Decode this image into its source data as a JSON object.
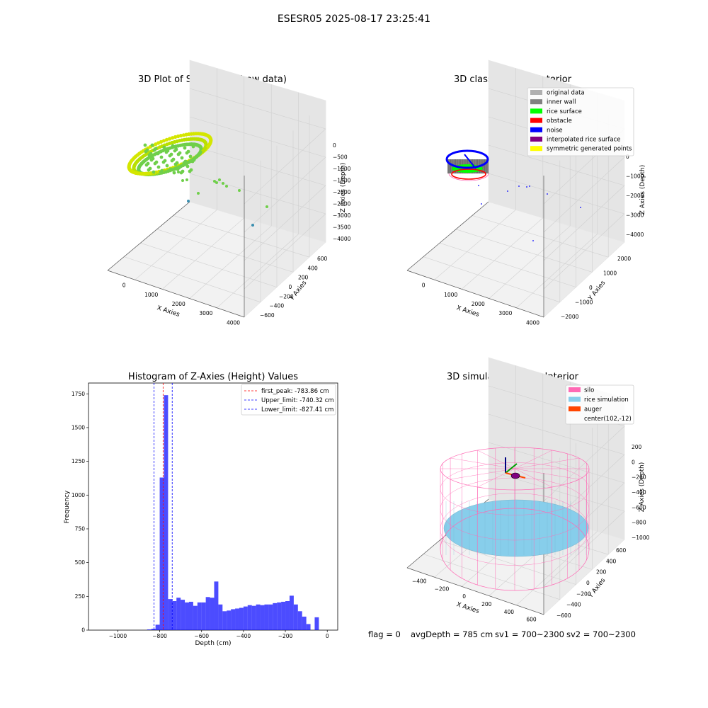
{
  "figure": {
    "title": "ESESR05 2025-08-17 23:25:41",
    "footer": {
      "flag": "flag = 0",
      "avg_depth": "avgDepth = 785 cm",
      "sv1": "sv1 = 700~2300",
      "sv2": "sv2 = 700~2300"
    }
  },
  "panels": {
    "raw": {
      "title": "3D Plot of Silo Interior(row data)",
      "xlabel": "X Axies",
      "ylabel": "Y Axies",
      "zlabel": "Z Axies (Depth)",
      "x_ticks": [
        "0",
        "1000",
        "2000",
        "3000",
        "4000"
      ],
      "y_ticks": [
        "600",
        "400",
        "200",
        "0",
        "−200",
        "−400",
        "−600"
      ],
      "z_ticks": [
        "0",
        "−500",
        "−1000",
        "−1500",
        "−2000",
        "−2500",
        "−3000",
        "−3500",
        "−4000"
      ],
      "colors": {
        "near": "#d4e600",
        "mid": "#6fcf4a",
        "far": "#3a8fb0"
      }
    },
    "classify": {
      "title": "3D classify of Silo Interior",
      "xlabel": "X Axies",
      "ylabel": "Y Axies",
      "zlabel": "Z Axies (Depth)",
      "x_ticks": [
        "0",
        "1000",
        "2000",
        "3000",
        "4000"
      ],
      "y_ticks": [
        "2000",
        "1000",
        "0",
        "−1000",
        "−2000"
      ],
      "z_ticks": [
        "0",
        "−1000",
        "−2000",
        "−3000",
        "−4000"
      ],
      "legend": [
        {
          "label": "original data",
          "color": "#b0b0b0"
        },
        {
          "label": "inner wall",
          "color": "#808080"
        },
        {
          "label": "rice surface",
          "color": "#00ff00"
        },
        {
          "label": "obstacle",
          "color": "#ff0000"
        },
        {
          "label": "noise",
          "color": "#0000ff"
        },
        {
          "label": "interpolated rice surface",
          "color": "#800080"
        },
        {
          "label": "symmetric generated points",
          "color": "#ffff00"
        }
      ]
    },
    "simulation": {
      "title": "3D simulation of Silo Interior",
      "xlabel": "X Axies",
      "ylabel": "Y Axies",
      "zlabel": "Z Axies (Depth)",
      "x_ticks": [
        "−400",
        "−200",
        "0",
        "200",
        "400",
        "600"
      ],
      "y_ticks": [
        "600",
        "400",
        "200",
        "0",
        "−200",
        "−400",
        "−600"
      ],
      "z_ticks": [
        "200",
        "0",
        "−200",
        "−400",
        "−600",
        "−800",
        "−1000"
      ],
      "legend": [
        {
          "label": "silo",
          "color": "#ff69b4"
        },
        {
          "label": "rice simulation",
          "color": "#87ceeb"
        },
        {
          "label": "auger",
          "color": "#ff4500"
        },
        {
          "label": "center(102,-12)",
          "color": ""
        }
      ]
    }
  },
  "chart_data": {
    "type": "bar",
    "title": "Histogram of Z-Axies (Height) Values",
    "xlabel": "Depth (cm)",
    "ylabel": "Frequency",
    "xlim": [
      -1140,
      50
    ],
    "ylim": [
      0,
      1830
    ],
    "x_ticks": [
      -1000,
      -800,
      -600,
      -400,
      -200,
      0
    ],
    "x_tick_labels": [
      "−1000",
      "−800",
      "−600",
      "−400",
      "−200",
      "0"
    ],
    "y_ticks": [
      0,
      250,
      500,
      750,
      1000,
      1250,
      1500,
      1750
    ],
    "y_tick_labels": [
      "0",
      "250",
      "500",
      "750",
      "1000",
      "1250",
      "1500",
      "1750"
    ],
    "bar_color": "#0000ff",
    "bin_width": 20,
    "bin_starts": [
      -860,
      -840,
      -820,
      -800,
      -780,
      -760,
      -740,
      -720,
      -700,
      -680,
      -660,
      -640,
      -620,
      -600,
      -580,
      -560,
      -540,
      -520,
      -500,
      -480,
      -460,
      -440,
      -420,
      -400,
      -380,
      -360,
      -340,
      -320,
      -300,
      -280,
      -260,
      -240,
      -220,
      -200,
      -180,
      -160,
      -140,
      -120,
      -100,
      -80,
      -60,
      -40,
      -20,
      0
    ],
    "values": [
      5,
      10,
      40,
      1130,
      1740,
      230,
      215,
      240,
      225,
      205,
      210,
      180,
      205,
      205,
      245,
      240,
      360,
      190,
      140,
      145,
      155,
      160,
      165,
      175,
      185,
      180,
      190,
      185,
      190,
      190,
      200,
      205,
      210,
      215,
      255,
      190,
      140,
      100,
      45,
      0,
      95,
      0,
      0,
      0
    ],
    "vlines": [
      {
        "name": "first_peak: -783.86 cm",
        "x": -783.86,
        "color": "#ff0000"
      },
      {
        "name": "Upper_limit: -740.32 cm",
        "x": -740.32,
        "color": "#0000ff"
      },
      {
        "name": "Lower_limit: -827.41 cm",
        "x": -827.41,
        "color": "#0000ff"
      }
    ],
    "legend_position": "top-right"
  }
}
